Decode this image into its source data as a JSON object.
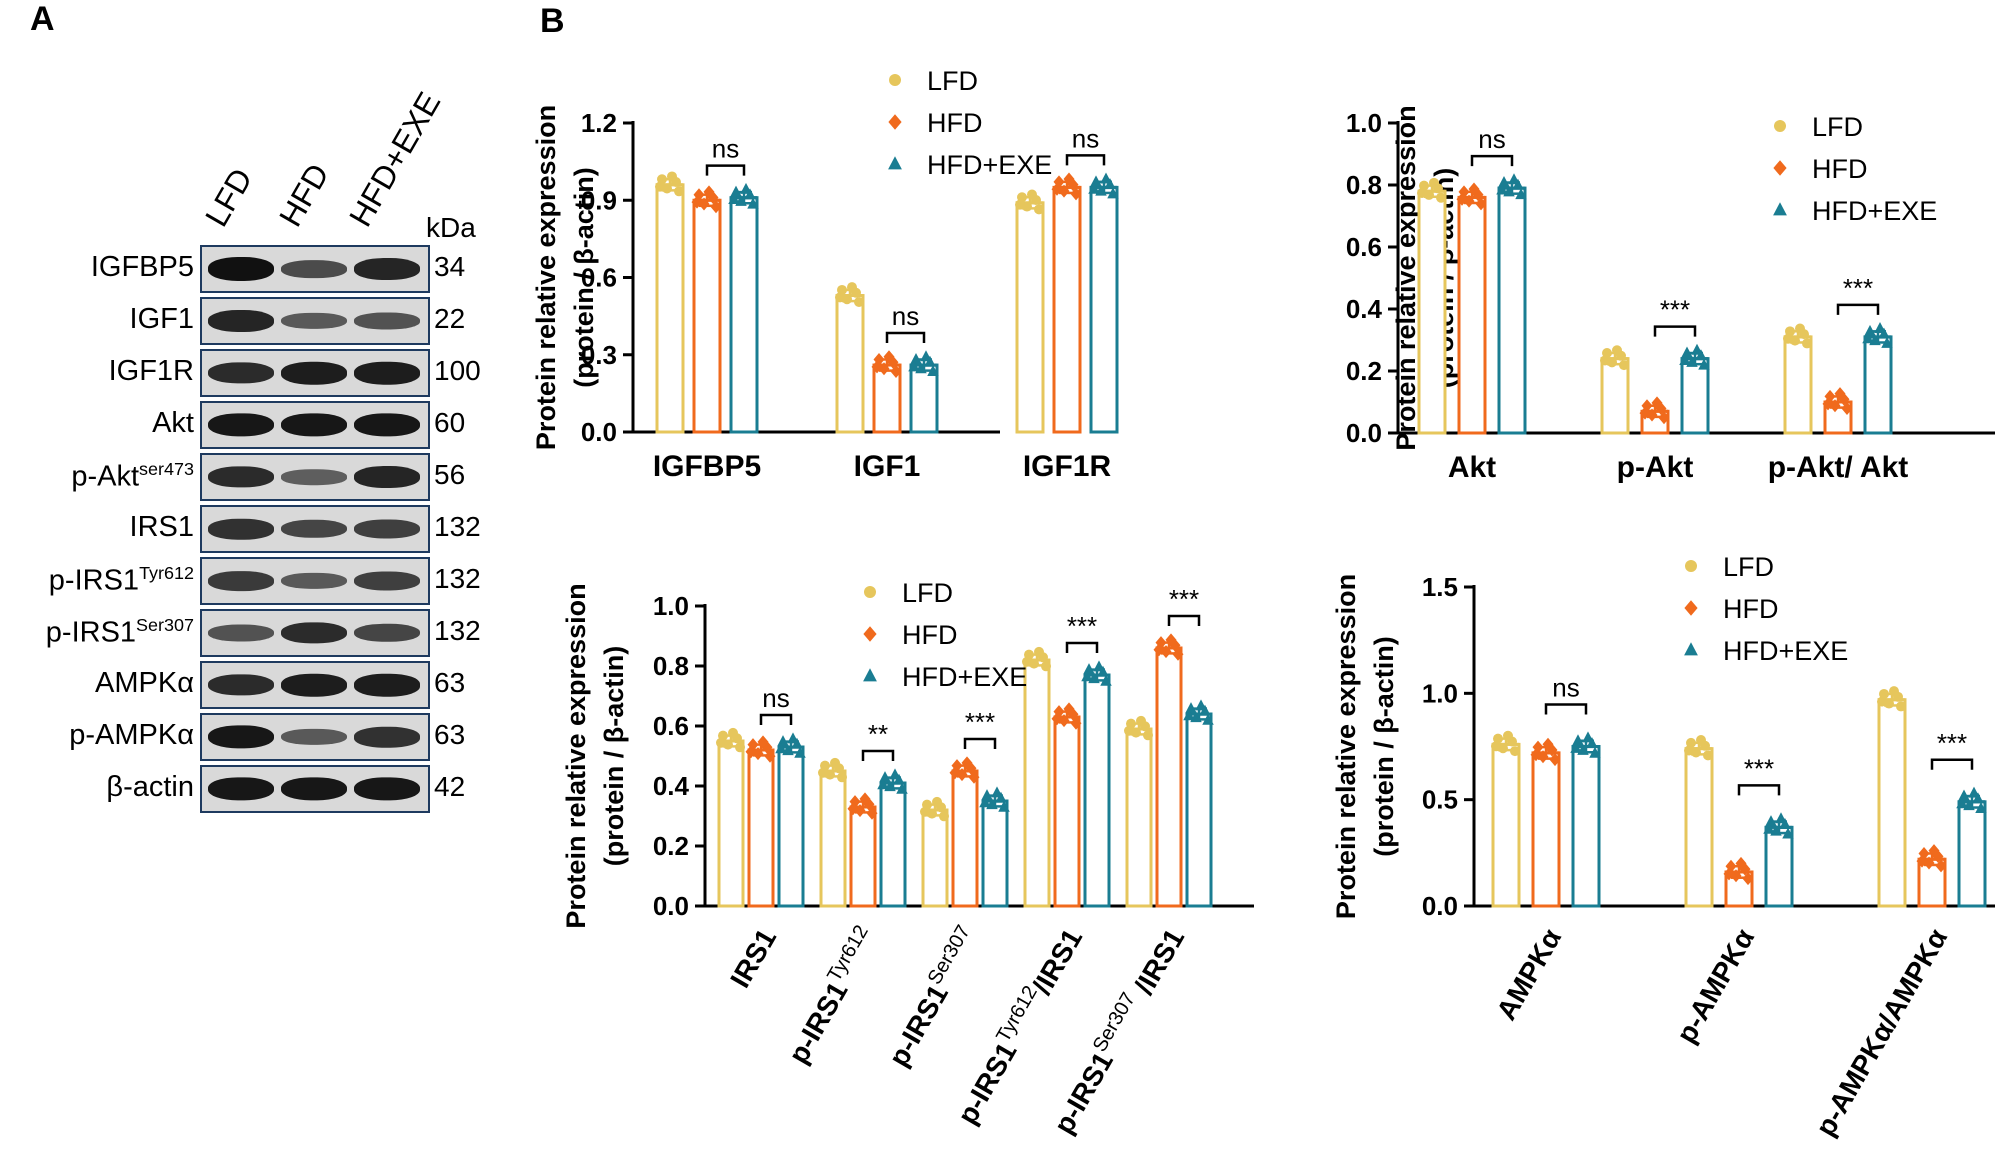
{
  "panel_a": {
    "letter": "A",
    "lanes": [
      "LFD",
      "HFD",
      "HFD+EXE"
    ],
    "kda_header": "kDa",
    "blots": [
      {
        "name": "IGFBP5",
        "sup": "",
        "kda": "34",
        "intensity": [
          1.0,
          0.55,
          0.85
        ]
      },
      {
        "name": "IGF1",
        "sup": "",
        "kda": "22",
        "intensity": [
          0.85,
          0.45,
          0.5
        ]
      },
      {
        "name": "IGF1R",
        "sup": "",
        "kda": "100",
        "intensity": [
          0.8,
          0.9,
          0.9
        ]
      },
      {
        "name": "Akt",
        "sup": "",
        "kda": "60",
        "intensity": [
          0.95,
          0.95,
          0.95
        ]
      },
      {
        "name": "p-Akt",
        "sup": "ser473",
        "kda": "56",
        "intensity": [
          0.8,
          0.4,
          0.85
        ]
      },
      {
        "name": "IRS1",
        "sup": "",
        "kda": "132",
        "intensity": [
          0.75,
          0.6,
          0.65
        ]
      },
      {
        "name": "p-IRS1",
        "sup": "Tyr612",
        "kda": "132",
        "intensity": [
          0.7,
          0.45,
          0.65
        ]
      },
      {
        "name": "p-IRS1",
        "sup": "Ser307",
        "kda": "132",
        "intensity": [
          0.5,
          0.8,
          0.6
        ]
      },
      {
        "name": "AMPKα",
        "sup": "",
        "kda": "63",
        "intensity": [
          0.8,
          0.9,
          0.9
        ]
      },
      {
        "name": "p-AMPKα",
        "sup": "",
        "kda": "63",
        "intensity": [
          0.95,
          0.45,
          0.75
        ]
      },
      {
        "name": "β-actin",
        "sup": "",
        "kda": "42",
        "intensity": [
          0.95,
          0.95,
          0.95
        ]
      }
    ]
  },
  "panel_b_letter": "B",
  "chart_data": [
    {
      "type": "bar",
      "ylabel1": "Protein relative expression",
      "ylabel2": "(protein / β-actin)",
      "categories": [
        "IGFBP5",
        "IGF1",
        "IGF1R"
      ],
      "ylim": [
        0,
        1.2
      ],
      "yticks": [
        "0.0",
        "0.3",
        "0.6",
        "0.9",
        "1.2"
      ],
      "series": [
        {
          "name": "LFD",
          "values": [
            0.96,
            0.53,
            0.89
          ]
        },
        {
          "name": "HFD",
          "values": [
            0.9,
            0.26,
            0.95
          ]
        },
        {
          "name": "HFD+EXE",
          "values": [
            0.91,
            0.26,
            0.95
          ]
        }
      ],
      "significance": [
        {
          "category": "IGFBP5",
          "label": "ns"
        },
        {
          "category": "IGF1",
          "label": "ns"
        },
        {
          "category": "IGF1R",
          "label": "ns"
        }
      ],
      "legend": "top-center"
    },
    {
      "type": "bar",
      "ylabel1": "Protein relative expression",
      "ylabel2": "(protein / β-actin)",
      "categories": [
        "Akt",
        "p-Akt",
        "p-Akt/ Akt"
      ],
      "ylim": [
        0,
        1.0
      ],
      "yticks": [
        "0.0",
        "0.2",
        "0.4",
        "0.6",
        "0.8",
        "1.0"
      ],
      "series": [
        {
          "name": "LFD",
          "values": [
            0.78,
            0.24,
            0.31
          ]
        },
        {
          "name": "HFD",
          "values": [
            0.76,
            0.07,
            0.1
          ]
        },
        {
          "name": "HFD+EXE",
          "values": [
            0.79,
            0.24,
            0.31
          ]
        }
      ],
      "significance": [
        {
          "category": "Akt",
          "label": "ns"
        },
        {
          "category": "p-Akt",
          "label": "***"
        },
        {
          "category": "p-Akt/ Akt",
          "label": "***"
        }
      ],
      "legend": "top-right"
    },
    {
      "type": "bar",
      "ylabel1": "Protein relative expression",
      "ylabel2": "(protein / β-actin)",
      "categories": [
        "IRS1",
        "p-IRS1Tyr612",
        "p-IRS1Ser307",
        "p-IRS1Tyr612/IRS1",
        "p-IRS1Ser307/IRS1"
      ],
      "ylim": [
        0,
        1.0
      ],
      "yticks": [
        "0.0",
        "0.2",
        "0.4",
        "0.6",
        "0.8",
        "1.0"
      ],
      "series": [
        {
          "name": "LFD",
          "values": [
            0.55,
            0.45,
            0.32,
            0.82,
            0.59
          ]
        },
        {
          "name": "HFD",
          "values": [
            0.52,
            0.33,
            0.45,
            0.63,
            0.86
          ]
        },
        {
          "name": "HFD+EXE",
          "values": [
            0.53,
            0.41,
            0.35,
            0.77,
            0.64
          ]
        }
      ],
      "significance": [
        {
          "category": "IRS1",
          "label": "ns"
        },
        {
          "category": "p-IRS1Tyr612",
          "label": "**"
        },
        {
          "category": "p-IRS1Ser307",
          "label": "***"
        },
        {
          "category": "p-IRS1Tyr612/IRS1",
          "label": "***"
        },
        {
          "category": "p-IRS1Ser307/IRS1",
          "label": "***"
        }
      ],
      "tick_parts": [
        {
          "base": "IRS1",
          "sup": "",
          "tail": ""
        },
        {
          "base": "p-IRS1",
          "sup": "Tyr612",
          "tail": ""
        },
        {
          "base": "p-IRS1",
          "sup": "Ser307",
          "tail": ""
        },
        {
          "base": "p-IRS1",
          "sup": "Tyr612",
          "tail": "/IRS1"
        },
        {
          "base": "p-IRS1",
          "sup": "Ser307",
          "tail": " /IRS1"
        }
      ],
      "legend": "top-center"
    },
    {
      "type": "bar",
      "ylabel1": "Protein relative expression",
      "ylabel2": "(protein / β-actin)",
      "categories": [
        "AMPKα",
        "p-AMPKα",
        "p-AMPKα/AMPKα"
      ],
      "ylim": [
        0,
        1.5
      ],
      "yticks": [
        "0.0",
        "0.5",
        "1.0",
        "1.5"
      ],
      "series": [
        {
          "name": "LFD",
          "values": [
            0.76,
            0.74,
            0.97
          ]
        },
        {
          "name": "HFD",
          "values": [
            0.72,
            0.16,
            0.22
          ]
        },
        {
          "name": "HFD+EXE",
          "values": [
            0.75,
            0.37,
            0.49
          ]
        }
      ],
      "significance": [
        {
          "category": "AMPKα",
          "label": "ns"
        },
        {
          "category": "p-AMPKα",
          "label": "***"
        },
        {
          "category": "p-AMPKα/AMPKα",
          "label": "***"
        }
      ],
      "legend": "top-center"
    }
  ],
  "colors": {
    "LFD": "#e6c65c",
    "HFD": "#f06a1d",
    "HFD+EXE": "#1a7d92"
  }
}
